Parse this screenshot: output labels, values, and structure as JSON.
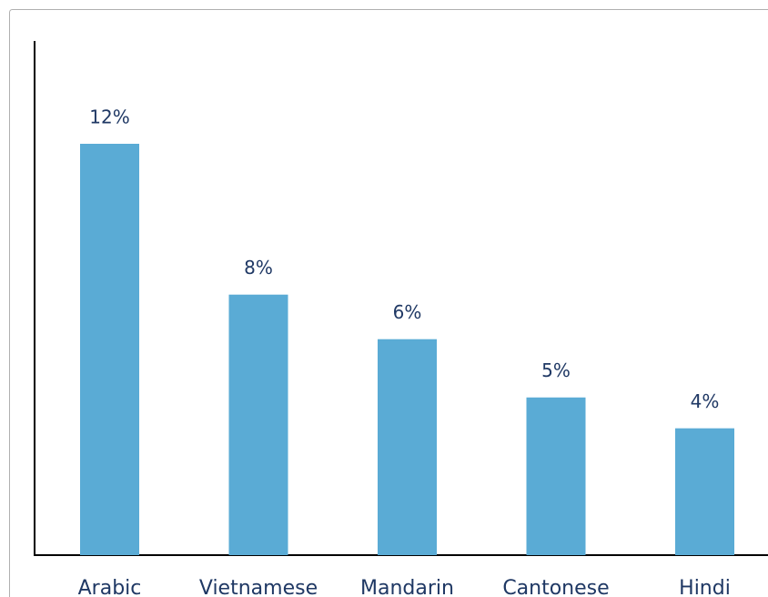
{
  "chart_data": {
    "type": "bar",
    "categories": [
      "Arabic",
      "Vietnamese",
      "Mandarin",
      "Cantonese",
      "Hindi"
    ],
    "values": [
      12,
      7.6,
      6.3,
      4.6,
      3.7
    ],
    "value_labels": [
      "12%",
      "8%",
      "6%",
      "5%",
      "4%"
    ],
    "color": "#5aabd5",
    "ylim": [
      0,
      15
    ]
  }
}
